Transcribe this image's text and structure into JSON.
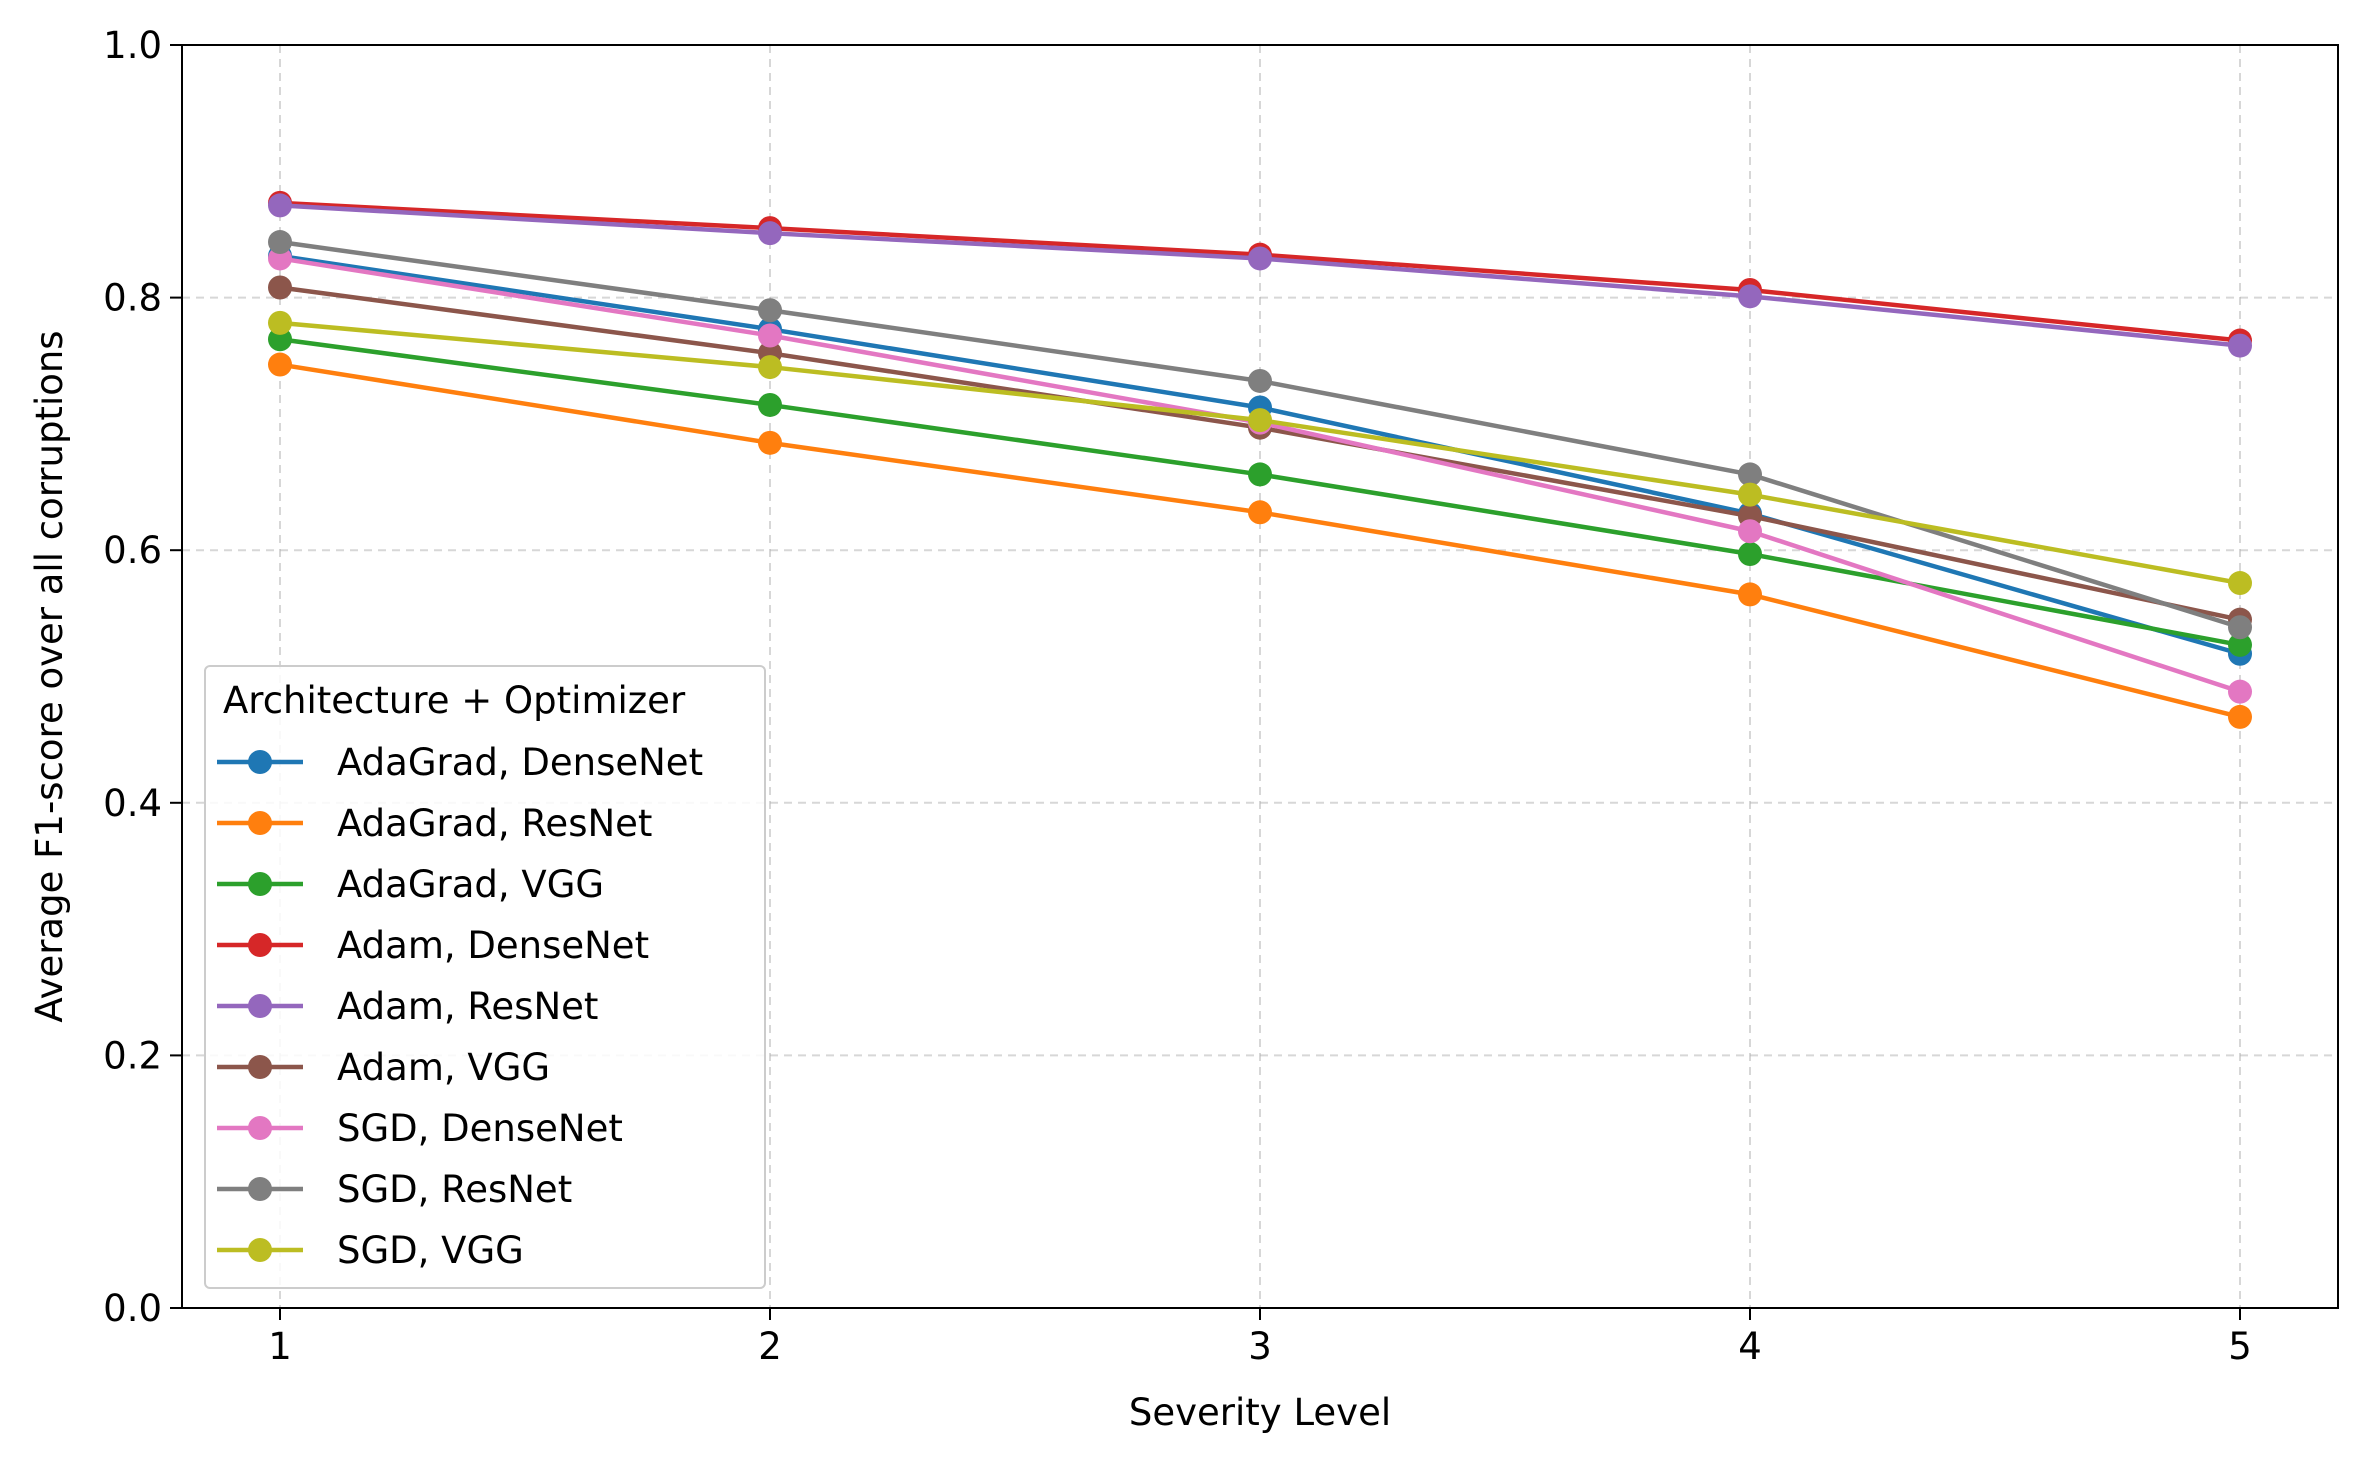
{
  "chart_data": {
    "type": "line",
    "xlabel": "Severity Level",
    "ylabel": "Average F1-score over all corruptions",
    "x": [
      1,
      2,
      3,
      4,
      5
    ],
    "xticks": [
      "1",
      "2",
      "3",
      "4",
      "5"
    ],
    "xlim": [
      0.8,
      5.2
    ],
    "ylim": [
      0.0,
      1.0
    ],
    "yticks": [
      "0.0",
      "0.2",
      "0.4",
      "0.6",
      "0.8",
      "1.0"
    ],
    "grid": true,
    "legend": {
      "title": "Architecture + Optimizer",
      "position": "lower-left"
    },
    "series": [
      {
        "name": "AdaGrad, DenseNet",
        "color": "#1f77b4",
        "values": [
          0.833,
          0.775,
          0.713,
          0.629,
          0.518
        ]
      },
      {
        "name": "AdaGrad, ResNet",
        "color": "#ff7f0e",
        "values": [
          0.747,
          0.685,
          0.63,
          0.565,
          0.468
        ]
      },
      {
        "name": "AdaGrad, VGG",
        "color": "#2ca02c",
        "values": [
          0.767,
          0.715,
          0.66,
          0.597,
          0.525
        ]
      },
      {
        "name": "Adam, DenseNet",
        "color": "#d62728",
        "values": [
          0.875,
          0.855,
          0.834,
          0.806,
          0.766
        ]
      },
      {
        "name": "Adam, ResNet",
        "color": "#9467bd",
        "values": [
          0.873,
          0.851,
          0.831,
          0.801,
          0.762
        ]
      },
      {
        "name": "Adam, VGG",
        "color": "#8c564b",
        "values": [
          0.808,
          0.756,
          0.697,
          0.627,
          0.545
        ]
      },
      {
        "name": "SGD, DenseNet",
        "color": "#e377c2",
        "values": [
          0.831,
          0.77,
          0.701,
          0.615,
          0.488
        ]
      },
      {
        "name": "SGD, ResNet",
        "color": "#7f7f7f",
        "values": [
          0.844,
          0.79,
          0.734,
          0.66,
          0.539
        ]
      },
      {
        "name": "SGD, VGG",
        "color": "#bcbd22",
        "values": [
          0.78,
          0.745,
          0.703,
          0.644,
          0.574
        ]
      }
    ]
  }
}
